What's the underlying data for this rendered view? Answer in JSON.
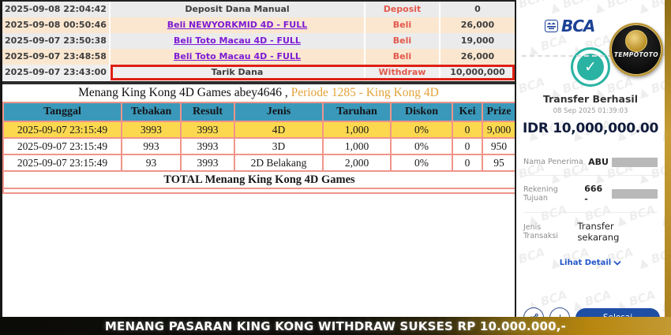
{
  "transactions": {
    "rows": [
      {
        "date": "2025-09-08 22:04:42",
        "desc": "Deposit Dana Manual",
        "type": "Deposit",
        "amount": "0"
      },
      {
        "date": "2025-09-08 00:50:46",
        "desc": "Beli NEWYORKMID 4D - FULL",
        "type": "Beli",
        "amount": "26,000"
      },
      {
        "date": "2025-09-07 23:50:38",
        "desc": "Beli Toto Macau 4D - FULL",
        "type": "Beli",
        "amount": "19,000"
      },
      {
        "date": "2025-09-07 23:48:58",
        "desc": "Beli Toto Macau 4D - FULL",
        "type": "Beli",
        "amount": "26,000"
      },
      {
        "date": "2025-09-07 23:43:00",
        "desc": "Tarik Dana",
        "type": "Withdraw",
        "amount": "10,000,000"
      }
    ]
  },
  "win": {
    "title_black": "Menang King Kong 4D Games abey4646 ,",
    "title_orange": "Periode 1285 - King Kong 4D",
    "table": {
      "headers": [
        "Tanggal",
        "Tebakan",
        "Result",
        "Jenis",
        "Taruhan",
        "Diskon",
        "Kei",
        "Prize"
      ],
      "rows": [
        {
          "date": "2025-09-07 23:15:49",
          "tebakan": "3993",
          "result": "3993",
          "jenis": "4D",
          "taruhan": "1,000",
          "diskon": "0%",
          "kei": "0",
          "prize": "9,000"
        },
        {
          "date": "2025-09-07 23:15:49",
          "tebakan": "993",
          "result": "3993",
          "jenis": "3D",
          "taruhan": "1,000",
          "diskon": "0%",
          "kei": "0",
          "prize": "950"
        },
        {
          "date": "2025-09-07 23:15:49",
          "tebakan": "93",
          "result": "3993",
          "jenis": "2D Belakang",
          "taruhan": "2,000",
          "diskon": "0%",
          "kei": "0",
          "prize": "95"
        }
      ],
      "total_label": "TOTAL  Menang King Kong 4D Games"
    }
  },
  "receipt": {
    "bank": "BCA",
    "badge": "TEMPOTOTO",
    "check": "✓",
    "status_title": "Transfer Berhasil",
    "datetime": "08 Sep 2025 01:39:03",
    "amount": "IDR 10,000,000.00",
    "fields": [
      {
        "label": "Nama Penerima",
        "value": "ABU"
      },
      {
        "label": "Rekening Tujuan",
        "value": "666 -"
      },
      {
        "label": "Jenis Transaksi",
        "value": "Transfer sekarang"
      }
    ],
    "detail_link": "Lihat Detail",
    "done_button": "Selesai",
    "watermark": "▲ BCA"
  },
  "banner": {
    "text": "MENANG PASARAN KING KONG WITHDRAW SUKSES RP 10.000.000,-"
  },
  "colors": {
    "accent_red": "#de2014",
    "teal_header": "#3a99ba",
    "highlight_yellow": "#fcd84f",
    "bca_blue": "#1c4296",
    "button_blue": "#1e4fa5",
    "check_teal": "#2ab3a2",
    "gold": "#b8860f"
  }
}
